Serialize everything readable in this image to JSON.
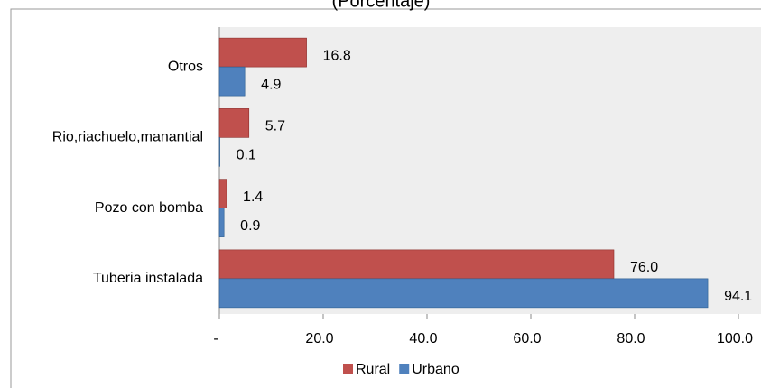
{
  "chart_data": {
    "type": "hbar",
    "title": "(Porcentaje)",
    "categories": [
      "Otros",
      "Rio,riachuelo,manantial",
      "Pozo con bomba",
      "Tuberia instalada"
    ],
    "series": [
      {
        "name": "Rural",
        "color": "#c0504d",
        "values": [
          16.8,
          5.7,
          1.4,
          76.0
        ],
        "value_labels": [
          "16.8",
          "5.7",
          "1.4",
          "76.0"
        ]
      },
      {
        "name": "Urbano",
        "color": "#4f81bd",
        "values": [
          4.9,
          0.1,
          0.9,
          94.1
        ],
        "value_labels": [
          "4.9",
          "0.1",
          "0.9",
          "94.1"
        ]
      }
    ],
    "xlim": [
      0,
      100
    ],
    "xticks": [
      {
        "value": 0,
        "label": "-"
      },
      {
        "value": 20,
        "label": "20.0"
      },
      {
        "value": 40,
        "label": "40.0"
      },
      {
        "value": 60,
        "label": "60.0"
      },
      {
        "value": 80,
        "label": "80.0"
      },
      {
        "value": 100,
        "label": "100.0"
      }
    ],
    "legend": "bottom"
  }
}
